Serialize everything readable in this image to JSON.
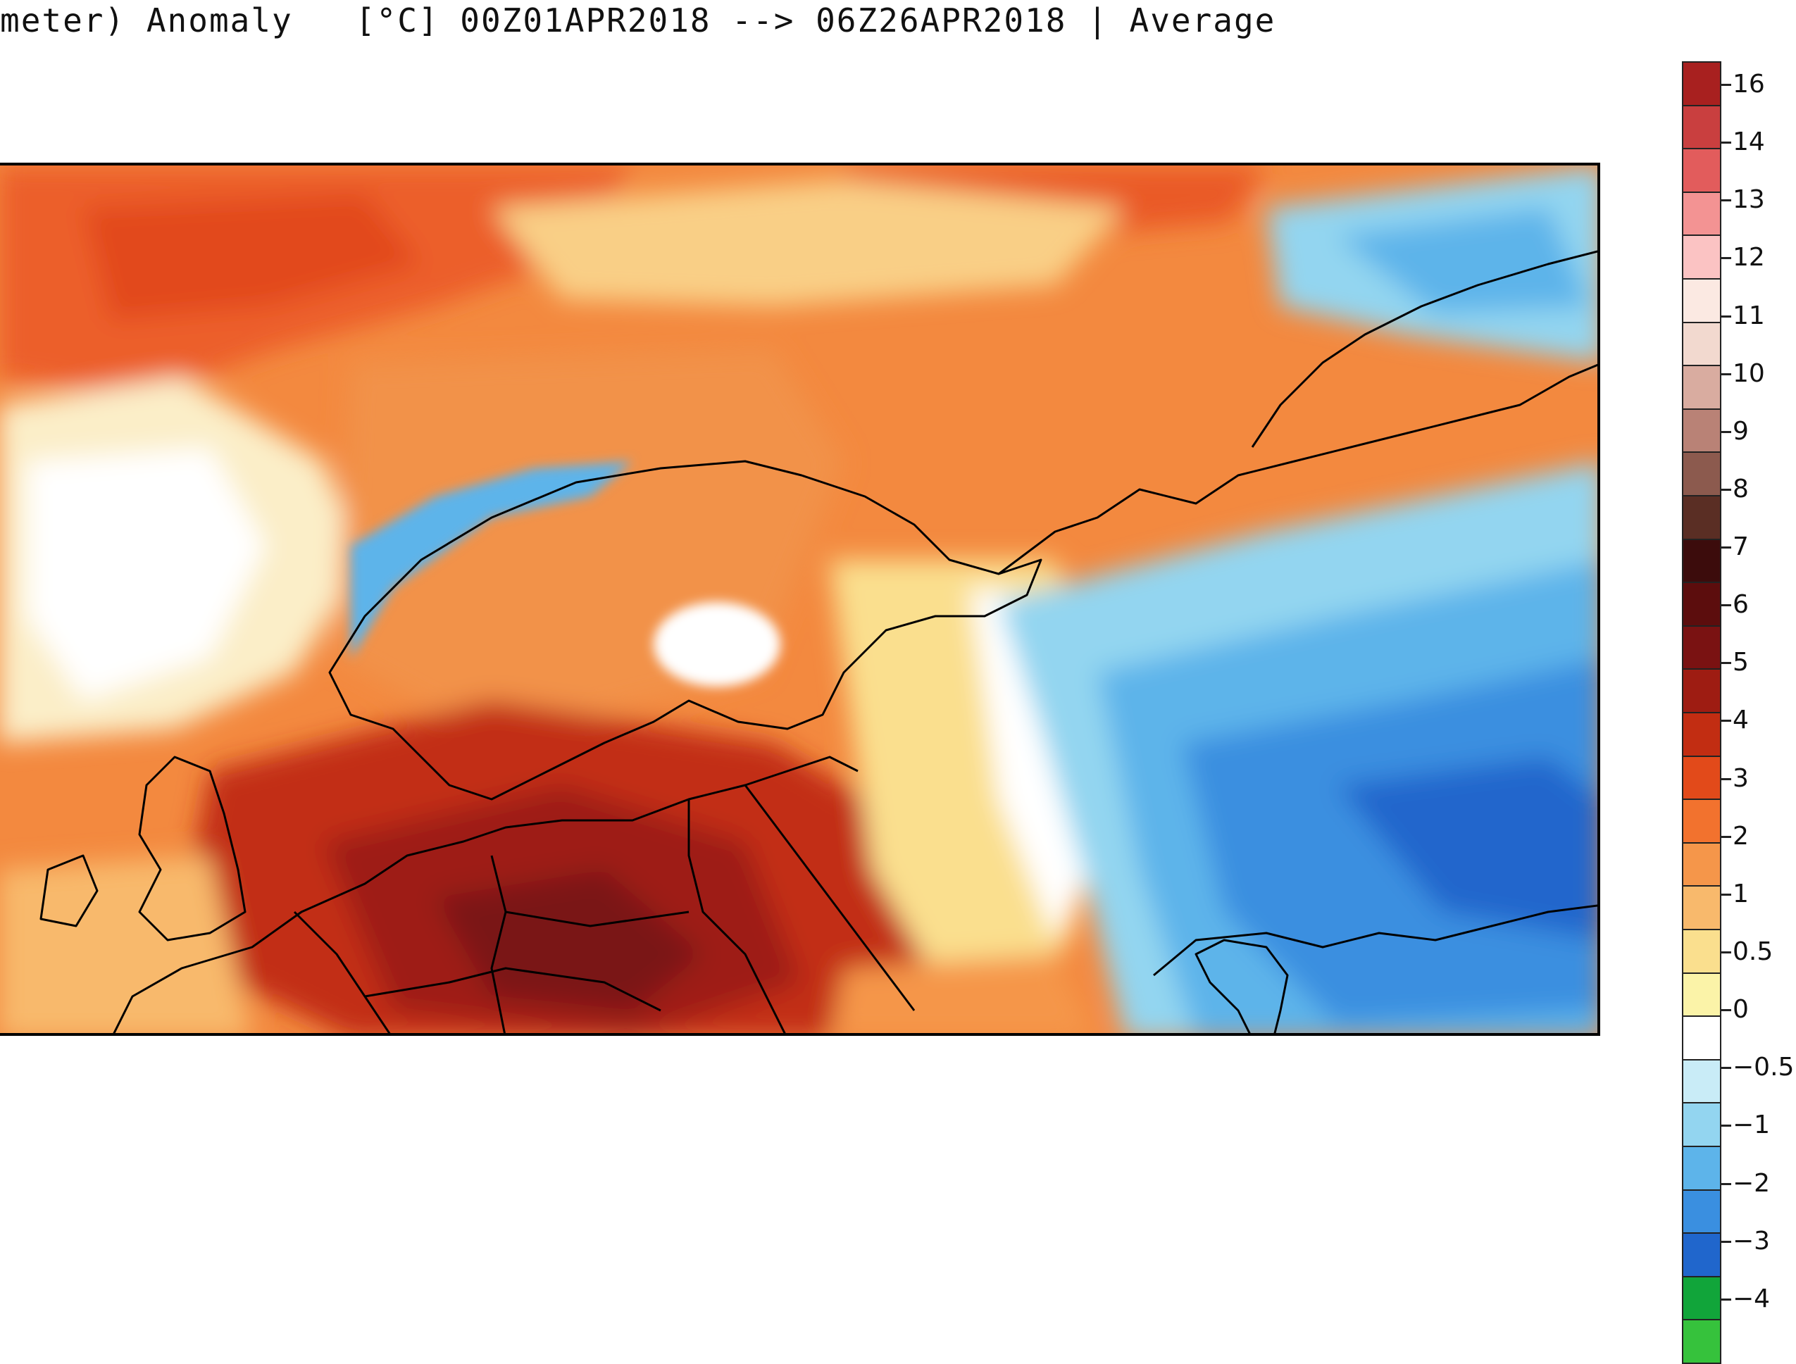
{
  "title": "meter) Anomaly   [°C] 00Z01APR2018 --> 06Z26APR2018 | Average",
  "colorbar": {
    "labels": [
      "16",
      "14",
      "13",
      "12",
      "11",
      "10",
      "9",
      "8",
      "7",
      "6",
      "5",
      "4",
      "3",
      "2",
      "1",
      "0.5",
      "0",
      "-0.5",
      "-1",
      "-2",
      "-3",
      "-4"
    ],
    "colors": [
      "#a8201f",
      "#c93f3f",
      "#e25c5c",
      "#f39393",
      "#fbc3c3",
      "#fbe9e2",
      "#f2d9cf",
      "#d9aca0",
      "#b98276",
      "#8c5a4e",
      "#5a2e24",
      "#3c0c0c",
      "#5c0d0d",
      "#7a1212",
      "#9e1c12",
      "#c22d12",
      "#e24a1a",
      "#f2722e",
      "#f5964a",
      "#f8b96c",
      "#fadf8e",
      "#fbf3a8",
      "#ffffff",
      "#c9ecf7",
      "#93d5f0",
      "#5db4ea",
      "#3a8fe0",
      "#2066cc",
      "#11a53a",
      "#36c23c"
    ]
  },
  "map": {
    "legend_icon": "map-europe-temperature-anomaly"
  }
}
